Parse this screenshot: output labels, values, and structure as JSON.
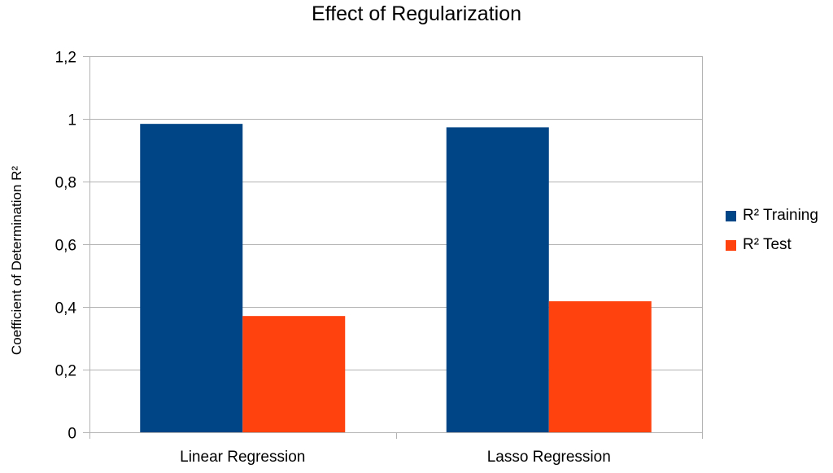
{
  "chart_data": {
    "type": "bar",
    "title": "Effect of Regularization",
    "xlabel": "",
    "ylabel": "Coefficient of Determination R²",
    "categories": [
      "Linear Regression",
      "Lasso Regression"
    ],
    "series": [
      {
        "name": "R² Training",
        "color": "#004586",
        "values": [
          0.984,
          0.973
        ]
      },
      {
        "name": "R² Test",
        "color": "#ff420e",
        "values": [
          0.371,
          0.418
        ]
      }
    ],
    "ylim": [
      0,
      1.2
    ],
    "yticks": [
      0,
      0.2,
      0.4,
      0.6,
      0.8,
      1,
      1.2
    ],
    "ytick_labels": [
      "0",
      "0,2",
      "0,4",
      "0,6",
      "0,8",
      "1",
      "1,2"
    ],
    "grid": true,
    "legend_position": "right"
  }
}
